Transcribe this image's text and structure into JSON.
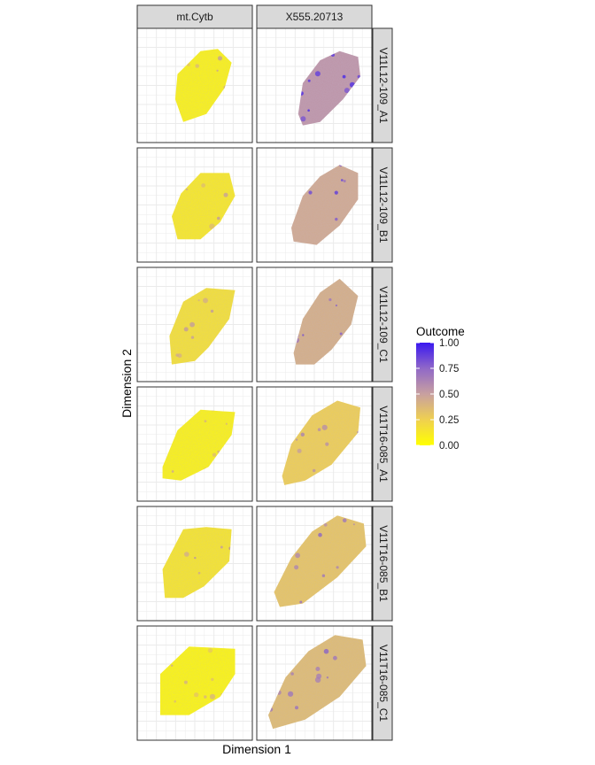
{
  "chart_data": {
    "type": "heatmap",
    "title": "",
    "xlabel": "Dimension 1",
    "ylabel": "Dimension 2",
    "facet_columns": [
      "mt.Cytb",
      "X555.20713"
    ],
    "facet_rows": [
      "V11L12-109_A1",
      "V11L12-109_B1",
      "V11L12-109_C1",
      "V11T16-085_A1",
      "V11T16-085_B1",
      "V11T16-085_C1"
    ],
    "legend": {
      "title": "Outcome",
      "placement": "right",
      "range": [
        0,
        1
      ],
      "ticks": [
        "1.00",
        "0.75",
        "0.50",
        "0.25",
        "0.00"
      ],
      "colors": {
        "low": "#FFFF00",
        "mid": "#C8A0A0",
        "high": "#3A18F0"
      }
    },
    "panels": [
      {
        "row": "V11L12-109_A1",
        "column": "mt.Cytb",
        "approx_mean_outcome": 0.05
      },
      {
        "row": "V11L12-109_A1",
        "column": "X555.20713",
        "approx_mean_outcome": 0.55
      },
      {
        "row": "V11L12-109_B1",
        "column": "mt.Cytb",
        "approx_mean_outcome": 0.1
      },
      {
        "row": "V11L12-109_B1",
        "column": "X555.20713",
        "approx_mean_outcome": 0.45
      },
      {
        "row": "V11L12-109_C1",
        "column": "mt.Cytb",
        "approx_mean_outcome": 0.15
      },
      {
        "row": "V11L12-109_C1",
        "column": "X555.20713",
        "approx_mean_outcome": 0.42
      },
      {
        "row": "V11T16-085_A1",
        "column": "mt.Cytb",
        "approx_mean_outcome": 0.05
      },
      {
        "row": "V11T16-085_A1",
        "column": "X555.20713",
        "approx_mean_outcome": 0.25
      },
      {
        "row": "V11T16-085_B1",
        "column": "mt.Cytb",
        "approx_mean_outcome": 0.12
      },
      {
        "row": "V11T16-085_B1",
        "column": "X555.20713",
        "approx_mean_outcome": 0.3
      },
      {
        "row": "V11T16-085_C1",
        "column": "mt.Cytb",
        "approx_mean_outcome": 0.03
      },
      {
        "row": "V11T16-085_C1",
        "column": "X555.20713",
        "approx_mean_outcome": 0.35
      }
    ]
  }
}
